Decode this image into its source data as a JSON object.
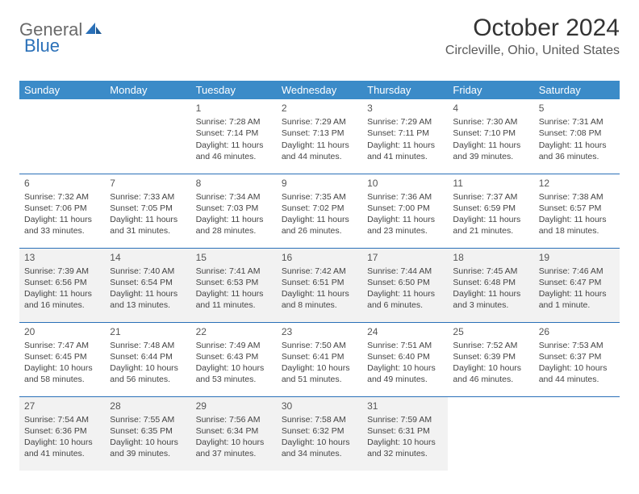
{
  "logo": {
    "general": "General",
    "blue": "Blue"
  },
  "title": "October 2024",
  "location": "Circleville, Ohio, United States",
  "calendar": {
    "headers": [
      "Sunday",
      "Monday",
      "Tuesday",
      "Wednesday",
      "Thursday",
      "Friday",
      "Saturday"
    ],
    "header_bg": "#3b8bc8",
    "border_color": "#2a70b8",
    "shade_bg": "#f2f2f2",
    "weeks": [
      {
        "shaded": false,
        "days": [
          null,
          null,
          {
            "n": "1",
            "sr": "Sunrise: 7:28 AM",
            "ss": "Sunset: 7:14 PM",
            "dl": "Daylight: 11 hours and 46 minutes."
          },
          {
            "n": "2",
            "sr": "Sunrise: 7:29 AM",
            "ss": "Sunset: 7:13 PM",
            "dl": "Daylight: 11 hours and 44 minutes."
          },
          {
            "n": "3",
            "sr": "Sunrise: 7:29 AM",
            "ss": "Sunset: 7:11 PM",
            "dl": "Daylight: 11 hours and 41 minutes."
          },
          {
            "n": "4",
            "sr": "Sunrise: 7:30 AM",
            "ss": "Sunset: 7:10 PM",
            "dl": "Daylight: 11 hours and 39 minutes."
          },
          {
            "n": "5",
            "sr": "Sunrise: 7:31 AM",
            "ss": "Sunset: 7:08 PM",
            "dl": "Daylight: 11 hours and 36 minutes."
          }
        ]
      },
      {
        "shaded": false,
        "days": [
          {
            "n": "6",
            "sr": "Sunrise: 7:32 AM",
            "ss": "Sunset: 7:06 PM",
            "dl": "Daylight: 11 hours and 33 minutes."
          },
          {
            "n": "7",
            "sr": "Sunrise: 7:33 AM",
            "ss": "Sunset: 7:05 PM",
            "dl": "Daylight: 11 hours and 31 minutes."
          },
          {
            "n": "8",
            "sr": "Sunrise: 7:34 AM",
            "ss": "Sunset: 7:03 PM",
            "dl": "Daylight: 11 hours and 28 minutes."
          },
          {
            "n": "9",
            "sr": "Sunrise: 7:35 AM",
            "ss": "Sunset: 7:02 PM",
            "dl": "Daylight: 11 hours and 26 minutes."
          },
          {
            "n": "10",
            "sr": "Sunrise: 7:36 AM",
            "ss": "Sunset: 7:00 PM",
            "dl": "Daylight: 11 hours and 23 minutes."
          },
          {
            "n": "11",
            "sr": "Sunrise: 7:37 AM",
            "ss": "Sunset: 6:59 PM",
            "dl": "Daylight: 11 hours and 21 minutes."
          },
          {
            "n": "12",
            "sr": "Sunrise: 7:38 AM",
            "ss": "Sunset: 6:57 PM",
            "dl": "Daylight: 11 hours and 18 minutes."
          }
        ]
      },
      {
        "shaded": true,
        "days": [
          {
            "n": "13",
            "sr": "Sunrise: 7:39 AM",
            "ss": "Sunset: 6:56 PM",
            "dl": "Daylight: 11 hours and 16 minutes."
          },
          {
            "n": "14",
            "sr": "Sunrise: 7:40 AM",
            "ss": "Sunset: 6:54 PM",
            "dl": "Daylight: 11 hours and 13 minutes."
          },
          {
            "n": "15",
            "sr": "Sunrise: 7:41 AM",
            "ss": "Sunset: 6:53 PM",
            "dl": "Daylight: 11 hours and 11 minutes."
          },
          {
            "n": "16",
            "sr": "Sunrise: 7:42 AM",
            "ss": "Sunset: 6:51 PM",
            "dl": "Daylight: 11 hours and 8 minutes."
          },
          {
            "n": "17",
            "sr": "Sunrise: 7:44 AM",
            "ss": "Sunset: 6:50 PM",
            "dl": "Daylight: 11 hours and 6 minutes."
          },
          {
            "n": "18",
            "sr": "Sunrise: 7:45 AM",
            "ss": "Sunset: 6:48 PM",
            "dl": "Daylight: 11 hours and 3 minutes."
          },
          {
            "n": "19",
            "sr": "Sunrise: 7:46 AM",
            "ss": "Sunset: 6:47 PM",
            "dl": "Daylight: 11 hours and 1 minute."
          }
        ]
      },
      {
        "shaded": false,
        "days": [
          {
            "n": "20",
            "sr": "Sunrise: 7:47 AM",
            "ss": "Sunset: 6:45 PM",
            "dl": "Daylight: 10 hours and 58 minutes."
          },
          {
            "n": "21",
            "sr": "Sunrise: 7:48 AM",
            "ss": "Sunset: 6:44 PM",
            "dl": "Daylight: 10 hours and 56 minutes."
          },
          {
            "n": "22",
            "sr": "Sunrise: 7:49 AM",
            "ss": "Sunset: 6:43 PM",
            "dl": "Daylight: 10 hours and 53 minutes."
          },
          {
            "n": "23",
            "sr": "Sunrise: 7:50 AM",
            "ss": "Sunset: 6:41 PM",
            "dl": "Daylight: 10 hours and 51 minutes."
          },
          {
            "n": "24",
            "sr": "Sunrise: 7:51 AM",
            "ss": "Sunset: 6:40 PM",
            "dl": "Daylight: 10 hours and 49 minutes."
          },
          {
            "n": "25",
            "sr": "Sunrise: 7:52 AM",
            "ss": "Sunset: 6:39 PM",
            "dl": "Daylight: 10 hours and 46 minutes."
          },
          {
            "n": "26",
            "sr": "Sunrise: 7:53 AM",
            "ss": "Sunset: 6:37 PM",
            "dl": "Daylight: 10 hours and 44 minutes."
          }
        ]
      },
      {
        "shaded": true,
        "days": [
          {
            "n": "27",
            "sr": "Sunrise: 7:54 AM",
            "ss": "Sunset: 6:36 PM",
            "dl": "Daylight: 10 hours and 41 minutes."
          },
          {
            "n": "28",
            "sr": "Sunrise: 7:55 AM",
            "ss": "Sunset: 6:35 PM",
            "dl": "Daylight: 10 hours and 39 minutes."
          },
          {
            "n": "29",
            "sr": "Sunrise: 7:56 AM",
            "ss": "Sunset: 6:34 PM",
            "dl": "Daylight: 10 hours and 37 minutes."
          },
          {
            "n": "30",
            "sr": "Sunrise: 7:58 AM",
            "ss": "Sunset: 6:32 PM",
            "dl": "Daylight: 10 hours and 34 minutes."
          },
          {
            "n": "31",
            "sr": "Sunrise: 7:59 AM",
            "ss": "Sunset: 6:31 PM",
            "dl": "Daylight: 10 hours and 32 minutes."
          },
          null,
          null
        ]
      }
    ]
  }
}
